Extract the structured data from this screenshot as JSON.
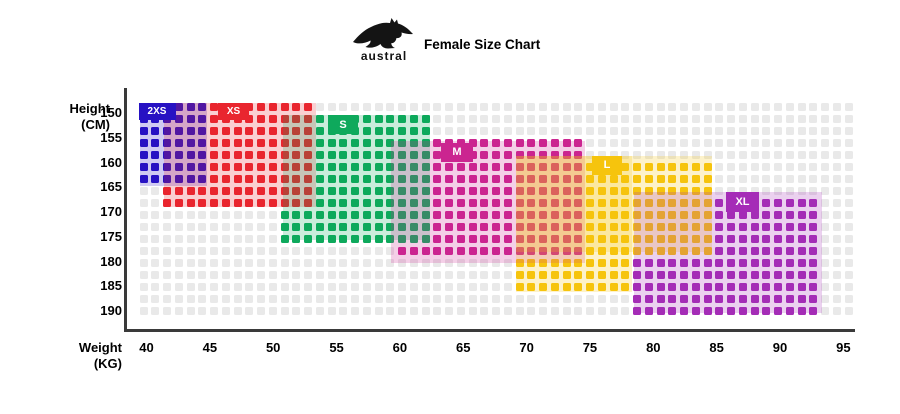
{
  "header": {
    "title": "Female Size Chart",
    "logo_text": "austral",
    "logo_icon": "kangaroo-icon"
  },
  "axes": {
    "y": {
      "label_line1": "Height",
      "label_line2": "(CM)",
      "ticks": [
        150,
        155,
        160,
        165,
        170,
        175,
        180,
        185,
        190
      ]
    },
    "x": {
      "label_line1": "Weight",
      "label_line2": "(KG)",
      "ticks": [
        40,
        45,
        50,
        55,
        60,
        65,
        70,
        75,
        80,
        85,
        90,
        95
      ]
    }
  },
  "chart_data": {
    "type": "heatmap",
    "title": "Female Size Chart",
    "xlabel": "Weight (KG)",
    "ylabel": "Height (CM)",
    "x_ticks": [
      40,
      45,
      50,
      55,
      60,
      65,
      70,
      75,
      80,
      85,
      90,
      95
    ],
    "y_ticks": [
      150,
      155,
      160,
      165,
      170,
      175,
      180,
      185,
      190
    ],
    "x_range": [
      40,
      95
    ],
    "y_range": [
      150,
      190
    ],
    "grid": {
      "columns": 61,
      "rows": 18,
      "cell_shape": "square",
      "legend_position": "inline-labels"
    },
    "colors": {
      "empty_cell": "#e9e9e9",
      "axis": "#3a3a3a",
      "text": "#000000",
      "label_text": "#ffffff"
    },
    "regions": [
      {
        "size": "2XS",
        "color": "#2712C3",
        "ranges": [
          {
            "weight_kg": [
              39.5,
              44.8
            ],
            "height_cm": [
              148.0,
              164.7
            ]
          }
        ]
      },
      {
        "size": "XS",
        "color": "#E9262F",
        "ranges": [
          {
            "weight_kg": [
              41.4,
              53.4
            ],
            "height_cm": [
              148.0,
              169.0
            ]
          }
        ]
      },
      {
        "size": "S",
        "color": "#0EA95C",
        "ranges": [
          {
            "weight_kg": [
              50.8,
              62.4
            ],
            "height_cm": [
              150.4,
              175.7
            ]
          }
        ]
      },
      {
        "size": "M",
        "color": "#CB2590",
        "ranges": [
          {
            "weight_kg": [
              59.3,
              74.6
            ],
            "height_cm": [
              155.7,
              180.3
            ]
          }
        ]
      },
      {
        "size": "L",
        "color": "#F6C40D",
        "ranges": [
          {
            "weight_kg": [
              69.2,
              84.6
            ],
            "height_cm": [
              158.7,
              178.0
            ]
          },
          {
            "weight_kg": [
              69.2,
              78.3
            ],
            "height_cm": [
              158.7,
              186.2
            ]
          }
        ]
      },
      {
        "size": "XL",
        "color": "#A52CB7",
        "ranges": [
          {
            "weight_kg": [
              78.5,
              93.3
            ],
            "height_cm": [
              166.0,
              190.4
            ]
          }
        ]
      }
    ]
  }
}
